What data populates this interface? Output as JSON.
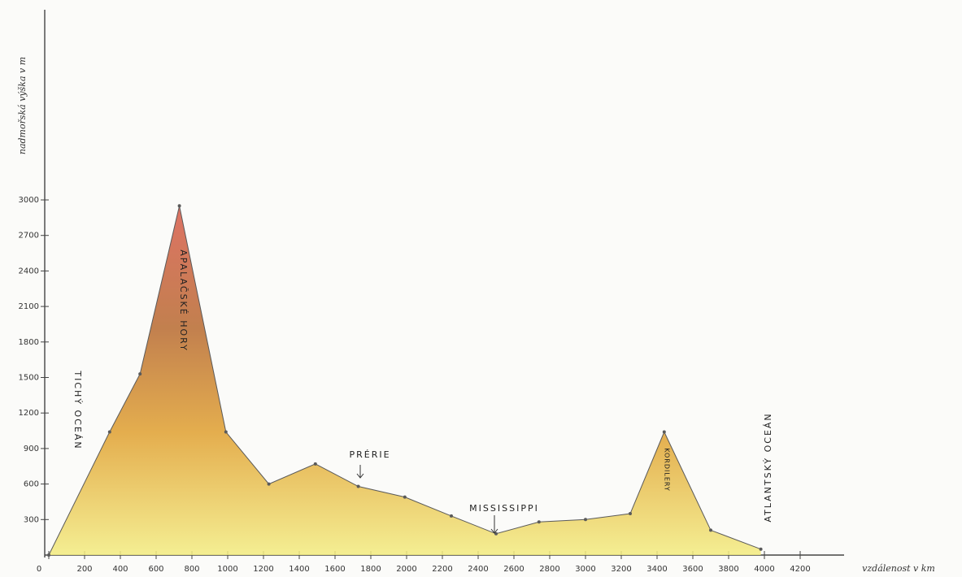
{
  "chart_data": {
    "type": "area",
    "x_label": "vzdálenost v km",
    "y_label": "nadmořská výška v m",
    "x": [
      0,
      340,
      510,
      730,
      990,
      1230,
      1490,
      1730,
      1990,
      2250,
      2500,
      2740,
      3000,
      3250,
      3440,
      3700,
      3980
    ],
    "series": [
      {
        "color": "#5a5a5a",
        "values": [
          0,
          1040,
          1530,
          2950,
          1040,
          600,
          770,
          580,
          490,
          330,
          180,
          280,
          300,
          350,
          1040,
          210,
          50
        ]
      }
    ],
    "xlim": [
      0,
      4400
    ],
    "xticks": [
      0,
      200,
      400,
      600,
      800,
      1000,
      1200,
      1400,
      1600,
      1800,
      2000,
      2200,
      2400,
      2600,
      2800,
      3000,
      3200,
      3400,
      3600,
      3800,
      4000,
      4200
    ],
    "ylim": [
      0,
      4500
    ],
    "yticks": [
      300,
      600,
      900,
      1200,
      1500,
      1800,
      2100,
      2400,
      2700,
      3000
    ],
    "annotations": [
      "TICHÝ OCEÁN",
      "APALAČSKÉ HORY",
      "PRÉRIE",
      "MISSISSIPPI",
      "KORDILERY",
      "ATLANTSKÝ OCEÁN"
    ]
  }
}
